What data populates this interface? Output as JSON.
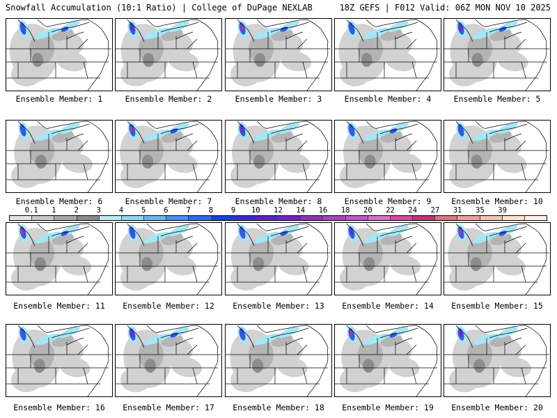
{
  "header": {
    "title": "Snowfall Accumulation (10:1 Ratio) | College of DuPage NEXLAB",
    "run_info": "18Z GEFS | F012 Valid: 06Z MON NOV 10 2025"
  },
  "member_label_prefix": "Ensemble Member:",
  "members": [
    "1",
    "2",
    "3",
    "4",
    "5",
    "6",
    "7",
    "8",
    "9",
    "10",
    "11",
    "12",
    "13",
    "14",
    "15",
    "16",
    "17",
    "18",
    "19",
    "20"
  ],
  "colorbar": {
    "labels": [
      "0.1",
      "1",
      "2",
      "3",
      "4",
      "5",
      "6",
      "7",
      "8",
      "9",
      "10",
      "12",
      "14",
      "16",
      "18",
      "20",
      "22",
      "24",
      "27",
      "31",
      "35",
      "39"
    ],
    "colors": [
      "#e4e4e4",
      "#c8c8c8",
      "#a8a8a8",
      "#8a8a8a",
      "#b8ecf4",
      "#8ed8f4",
      "#6ab8f0",
      "#4a8ff0",
      "#2a6cf0",
      "#1740e8",
      "#3a2ad8",
      "#5a24c8",
      "#7424b8",
      "#8e34b8",
      "#a848c0",
      "#c258c8",
      "#d870c8",
      "#d84898",
      "#c83070",
      "#d87880",
      "#e8a0a0",
      "#f0c4b4",
      "#f8e2d2",
      "#fcf2e8"
    ],
    "units": ""
  },
  "colors": {
    "gray_light": "#d2d2d2",
    "gray_mid": "#b4b4b4",
    "gray_dark": "#8c8c8c",
    "cyan": "#a6e6f4",
    "blue": "#3458e6",
    "purple": "#6c2cc8",
    "magenta": "#c0309c",
    "outline": "#000000"
  }
}
